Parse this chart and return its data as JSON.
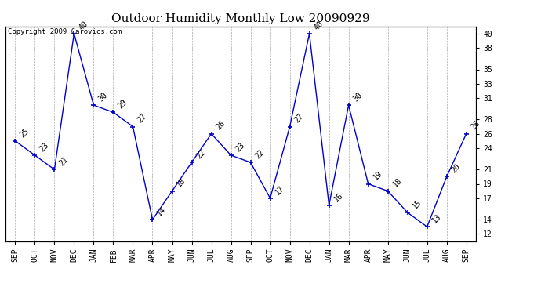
{
  "title": "Outdoor Humidity Monthly Low 20090929",
  "copyright": "Copyright 2009 Carovics.com",
  "categories": [
    "SEP",
    "OCT",
    "NOV",
    "DEC",
    "JAN",
    "FEB",
    "MAR",
    "APR",
    "MAY",
    "JUN",
    "JUL",
    "AUG",
    "SEP",
    "OCT",
    "NOV",
    "DEC",
    "JAN",
    "MAR",
    "APR",
    "MAY",
    "JUN",
    "JUL",
    "AUG",
    "SEP"
  ],
  "values": [
    25,
    23,
    21,
    40,
    30,
    29,
    27,
    14,
    18,
    22,
    26,
    23,
    22,
    17,
    27,
    40,
    16,
    30,
    19,
    18,
    15,
    13,
    20,
    26
  ],
  "line_color": "#0000cc",
  "marker": "+",
  "marker_color": "#0000cc",
  "bg_color": "#ffffff",
  "grid_color": "#aaaaaa",
  "ylim": [
    11,
    41
  ],
  "yticks": [
    12,
    14,
    17,
    19,
    21,
    24,
    26,
    28,
    31,
    33,
    35,
    38,
    40
  ],
  "title_fontsize": 11,
  "label_fontsize": 7,
  "tick_fontsize": 7,
  "copyright_fontsize": 6.5
}
